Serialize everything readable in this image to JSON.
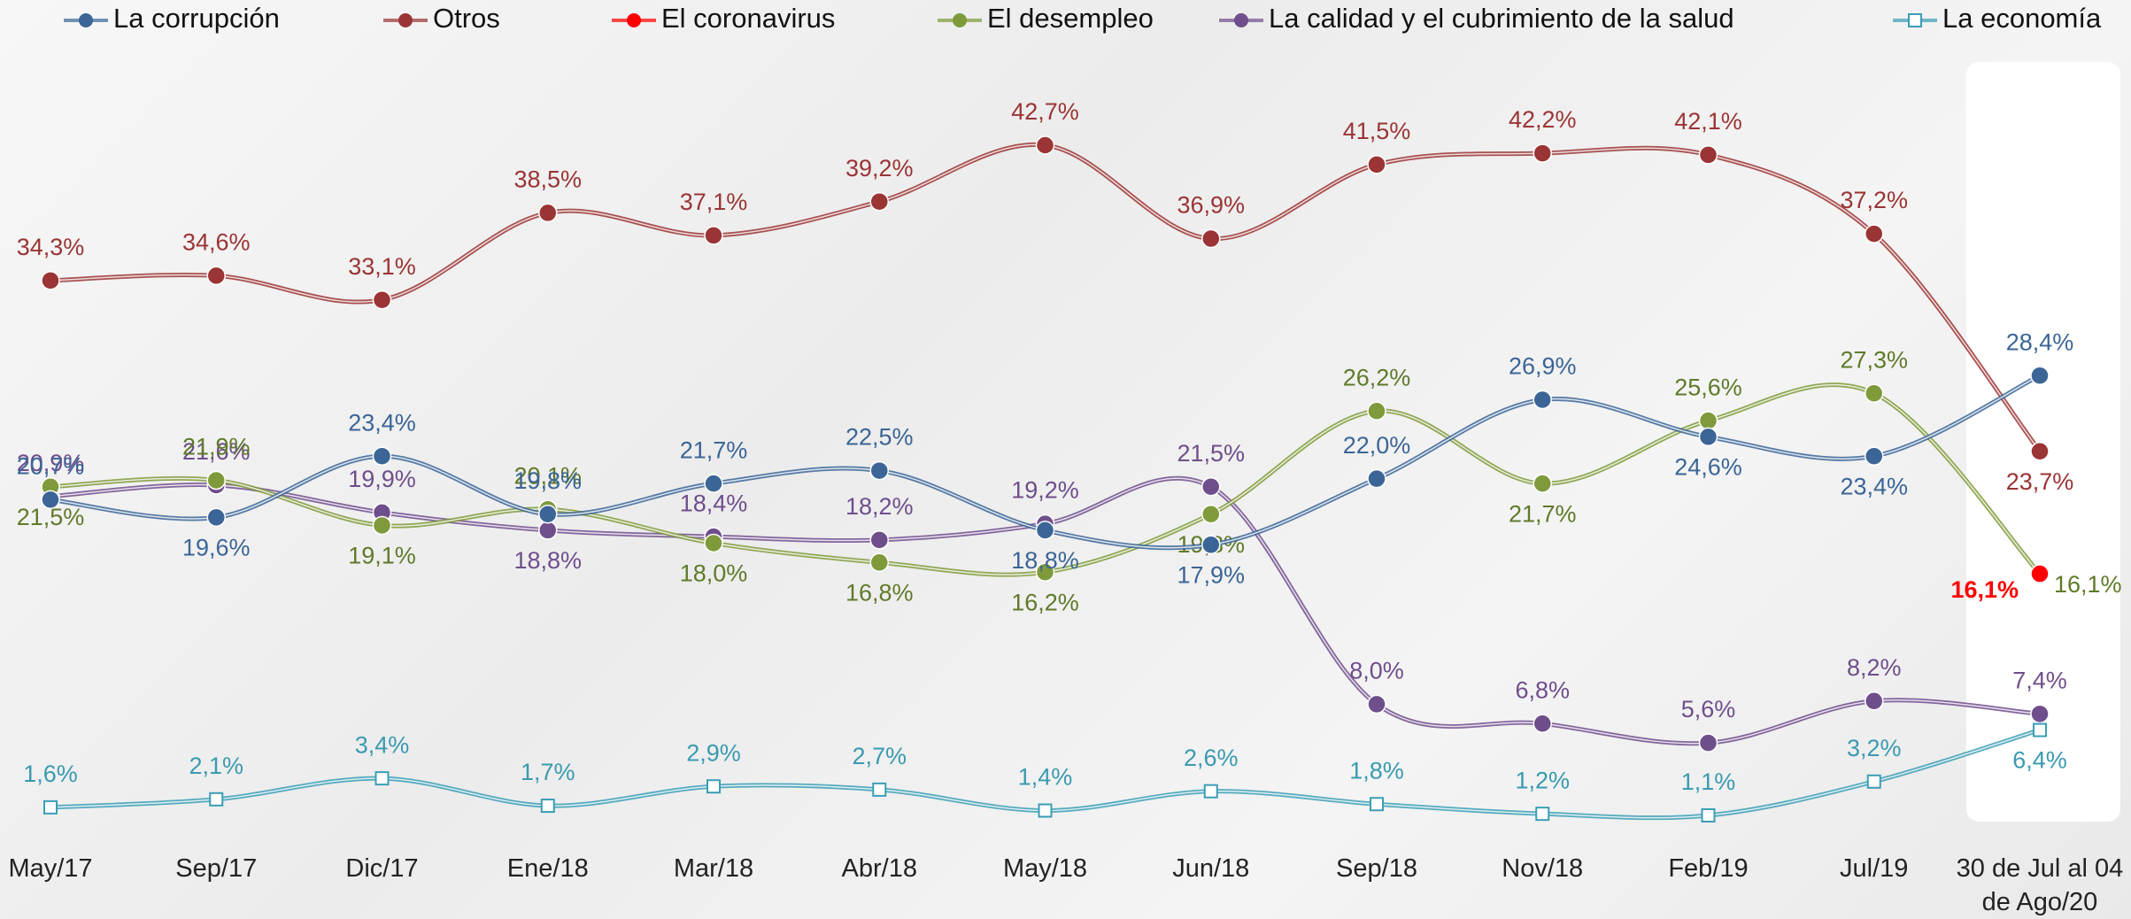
{
  "chart_data": {
    "type": "line",
    "categories": [
      "May/17",
      "Sep/17",
      "Dic/17",
      "Ene/18",
      "Mar/18",
      "Abr/18",
      "May/18",
      "Jun/18",
      "Sep/18",
      "Nov/18",
      "Feb/19",
      "Jul/19",
      "30 de Jul al 04 de Ago/20"
    ],
    "series": [
      {
        "name": "La corrupción",
        "color": "#3b6596",
        "values": [
          20.7,
          19.6,
          23.4,
          19.8,
          21.7,
          22.5,
          18.8,
          17.9,
          22.0,
          26.9,
          24.6,
          23.4,
          28.4
        ],
        "value_labels": [
          "20,7%",
          "19,6%",
          "23,4%",
          "19,8%",
          "21,7%",
          "22,5%",
          "18,8%",
          "17,9%",
          "22,0%",
          "26,9%",
          "24,6%",
          "23,4%",
          "28,4%"
        ]
      },
      {
        "name": "Otros",
        "color": "#9b3434",
        "values": [
          34.3,
          34.6,
          33.1,
          38.5,
          37.1,
          39.2,
          42.7,
          36.9,
          41.5,
          42.2,
          42.1,
          37.2,
          23.7
        ],
        "value_labels": [
          "34,3%",
          "34,6%",
          "33,1%",
          "38,5%",
          "37,1%",
          "39,2%",
          "42,7%",
          "36,9%",
          "41,5%",
          "42,2%",
          "42,1%",
          "37,2%",
          "23,7%"
        ]
      },
      {
        "name": "El coronavirus",
        "color": "#ff0000",
        "values": [
          null,
          null,
          null,
          null,
          null,
          null,
          null,
          null,
          null,
          null,
          null,
          null,
          16.1
        ],
        "value_labels": [
          null,
          null,
          null,
          null,
          null,
          null,
          null,
          null,
          null,
          null,
          null,
          null,
          "16,1%"
        ]
      },
      {
        "name": "El desempleo",
        "color": "#7f9a3a",
        "values": [
          21.5,
          21.9,
          19.1,
          20.1,
          18.0,
          16.8,
          16.2,
          19.8,
          26.2,
          21.7,
          25.6,
          27.3,
          16.1
        ],
        "value_labels": [
          "21,5%",
          "21,9%",
          "19,1%",
          "20,1%",
          "18,0%",
          "16,8%",
          "16,2%",
          "19,8%",
          "26,2%",
          "21,7%",
          "25,6%",
          "27,3%",
          "16,1%"
        ]
      },
      {
        "name": "La calidad y el cubrimiento de la salud",
        "color": "#6f4e8c",
        "values": [
          20.9,
          21.6,
          19.9,
          18.8,
          18.4,
          18.2,
          19.2,
          21.5,
          8.0,
          6.8,
          5.6,
          8.2,
          7.4
        ],
        "value_labels": [
          "20,9%",
          "21,6%",
          "19,9%",
          "18,8%",
          "18,4%",
          "18,2%",
          "19,2%",
          "21,5%",
          "8,0%",
          "6,8%",
          "5,6%",
          "8,2%",
          "7,4%"
        ]
      },
      {
        "name": "La economía",
        "color": "#3a9eb5",
        "values": [
          1.6,
          2.1,
          3.4,
          1.7,
          2.9,
          2.7,
          1.4,
          2.6,
          1.8,
          1.2,
          1.1,
          3.2,
          6.4
        ],
        "value_labels": [
          "1,6%",
          "2,1%",
          "3,4%",
          "1,7%",
          "2,9%",
          "2,7%",
          "1,4%",
          "2,6%",
          "1,8%",
          "1,2%",
          "1,1%",
          "3,2%",
          "6,4%"
        ]
      }
    ]
  }
}
